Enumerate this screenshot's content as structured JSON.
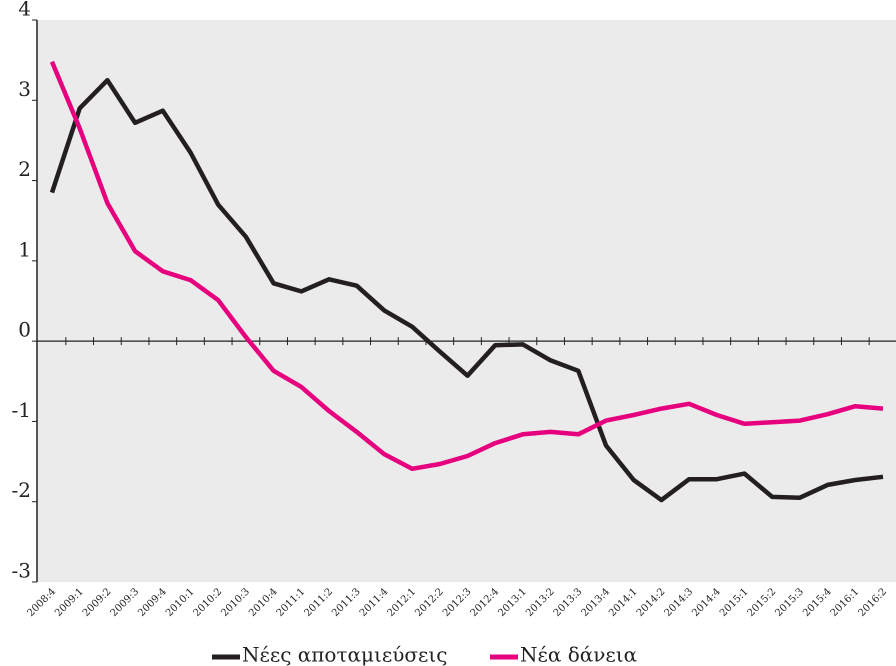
{
  "chart_data": {
    "type": "line",
    "categories": [
      "2008:4",
      "2009:1",
      "2009:2",
      "2009:3",
      "2009:4",
      "2010:1",
      "2010:2",
      "2010:3",
      "2010:4",
      "2011:1",
      "2011:2",
      "2011:3",
      "2011:4",
      "2012:1",
      "2012:2",
      "2012:3",
      "2012:4",
      "2013:1",
      "2013:2",
      "2013:3",
      "2013:4",
      "2014:1",
      "2014:2",
      "2014:3",
      "2014:4",
      "2015:1",
      "2015:2",
      "2015:3",
      "2015:4",
      "2016:1",
      "2016:2"
    ],
    "series": [
      {
        "name": "Νέες αποταμιεύσεις",
        "color": "#231f20",
        "values": [
          1.85,
          2.9,
          3.25,
          2.72,
          2.87,
          2.35,
          1.7,
          1.3,
          0.72,
          0.62,
          0.77,
          0.69,
          0.38,
          0.18,
          -0.13,
          -0.43,
          -0.05,
          -0.04,
          -0.24,
          -0.37,
          -1.3,
          -1.73,
          -1.98,
          -1.72,
          -1.72,
          -1.65,
          -1.94,
          -1.95,
          -1.79,
          -1.73,
          -1.69
        ]
      },
      {
        "name": "Νέα δάνεια",
        "color": "#e6007e",
        "values": [
          3.48,
          2.65,
          1.72,
          1.12,
          0.87,
          0.76,
          0.51,
          0.05,
          -0.37,
          -0.57,
          -0.87,
          -1.13,
          -1.41,
          -1.59,
          -1.53,
          -1.43,
          -1.27,
          -1.16,
          -1.13,
          -1.16,
          -0.99,
          -0.92,
          -0.84,
          -0.78,
          -0.92,
          -1.03,
          -1.01,
          -0.99,
          -0.91,
          -0.81,
          -0.84
        ]
      }
    ],
    "ylim": [
      -3,
      4
    ],
    "yticks": [
      -3,
      -2,
      -1,
      0,
      1,
      2,
      3,
      4
    ]
  }
}
